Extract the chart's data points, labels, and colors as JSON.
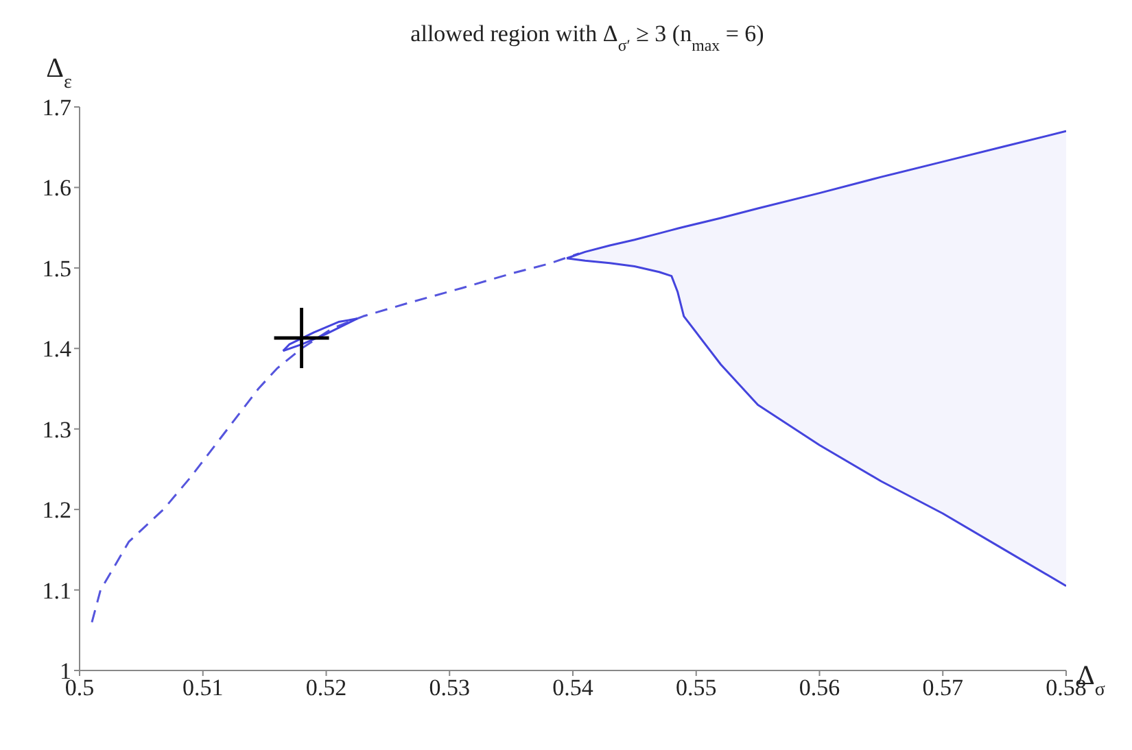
{
  "chart_data": {
    "type": "line",
    "title": "allowed region with Δ$_{σ′}$ ≥ 3 (n$_{max}$ = 6)",
    "xlabel": "Δ$_{σ}$",
    "ylabel": "Δ$_{ε}$",
    "xlim": [
      0.5,
      0.58
    ],
    "xticks": [
      0.5,
      0.51,
      0.52,
      0.53,
      0.54,
      0.55,
      0.56,
      0.57,
      0.58
    ],
    "ylim": [
      1,
      1.7
    ],
    "yticks": [
      1,
      1.1,
      1.2,
      1.3,
      1.4,
      1.5,
      1.6,
      1.7
    ],
    "grid": false,
    "series": [
      {
        "line_style": "dashed",
        "color": "#5555dd",
        "x": [
          0.501,
          0.5017,
          0.504,
          0.5068,
          0.509,
          0.511,
          0.513,
          0.5145,
          0.516,
          0.518,
          0.5205,
          0.523,
          0.527,
          0.531,
          0.535,
          0.538,
          0.5405
        ],
        "values": [
          1.06,
          1.1,
          1.16,
          1.2,
          1.24,
          1.28,
          1.32,
          1.35,
          1.375,
          1.4,
          1.425,
          1.44,
          1.458,
          1.475,
          1.493,
          1.505,
          1.518
        ]
      },
      {
        "line_style": "solid",
        "color": "#4444dd",
        "x": [
          0.5165,
          0.518,
          0.52,
          0.5225
        ],
        "values": [
          1.397,
          1.405,
          1.418,
          1.437
        ]
      },
      {
        "line_style": "solid",
        "color": "#4444dd",
        "x": [
          0.5165,
          0.517,
          0.519,
          0.521,
          0.5225
        ],
        "values": [
          1.397,
          1.405,
          1.42,
          1.433,
          1.437
        ]
      },
      {
        "type": "line",
        "color": "#4444dd",
        "x": [
          0.5395,
          0.541,
          0.543,
          0.545,
          0.547,
          0.548,
          0.5485,
          0.549,
          0.552,
          0.555,
          0.56,
          0.565,
          0.57,
          0.575,
          0.58
        ],
        "values": [
          1.512,
          1.52,
          1.528,
          1.535,
          1.543,
          1.547,
          1.549,
          1.551,
          1.562,
          1.574,
          1.593,
          1.613,
          1.632,
          1.651,
          1.67
        ],
        "lower": [
          1.512,
          1.509,
          1.506,
          1.502,
          1.495,
          1.49,
          1.47,
          1.44,
          1.38,
          1.33,
          1.28,
          1.235,
          1.195,
          1.15,
          1.105
        ],
        "upper": [
          1.512,
          1.52,
          1.528,
          1.535,
          1.543,
          1.547,
          1.549,
          1.551,
          1.562,
          1.574,
          1.593,
          1.613,
          1.632,
          1.651,
          1.67
        ]
      },
      {
        "type": "line",
        "color": "#4444dd",
        "x": [
          0.5395,
          0.541,
          0.543,
          0.545,
          0.547,
          0.548,
          0.5485,
          0.549,
          0.552,
          0.555,
          0.56,
          0.565,
          0.57,
          0.575,
          0.58
        ],
        "values": [
          1.512,
          1.509,
          1.506,
          1.502,
          1.495,
          1.49,
          1.47,
          1.44,
          1.38,
          1.33,
          1.28,
          1.235,
          1.195,
          1.15,
          1.105
        ]
      },
      {
        "type": "scatter",
        "marker": "cross",
        "color": "#000000",
        "x": [
          0.518
        ],
        "values": [
          1.413
        ]
      }
    ]
  }
}
